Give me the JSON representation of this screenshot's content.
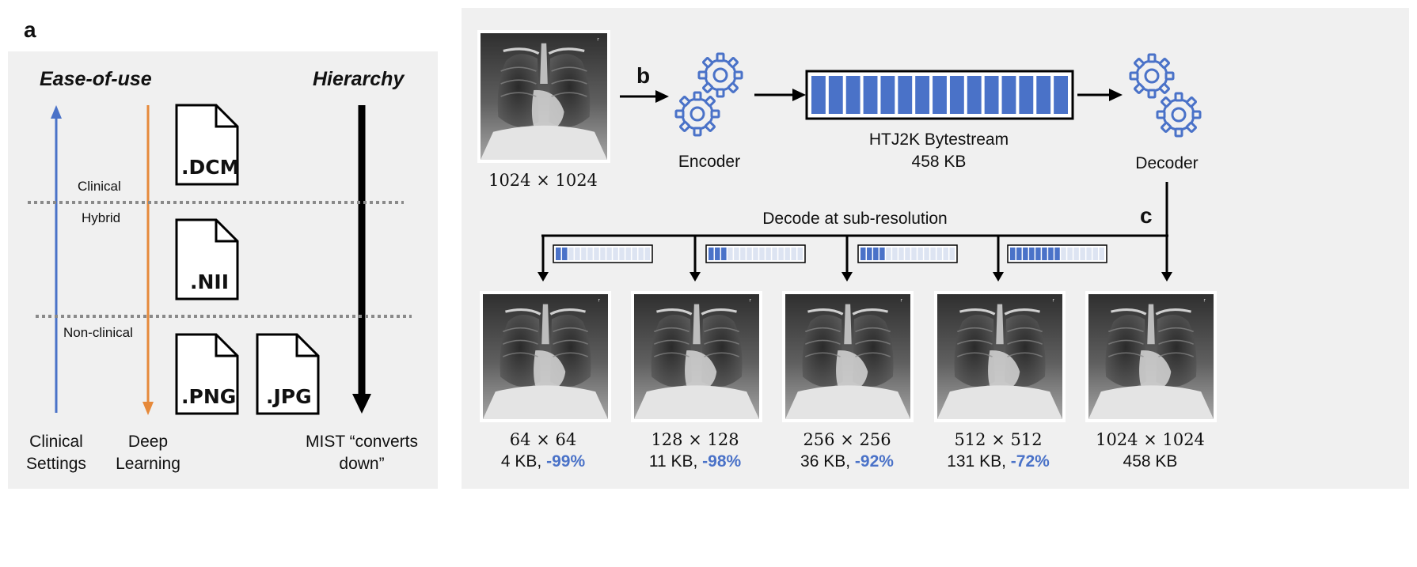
{
  "panel_a": {
    "letter": "a",
    "ease_of_use": "Ease-of-use",
    "hierarchy": "Hierarchy",
    "zones": {
      "clinical": "Clinical",
      "hybrid": "Hybrid",
      "non_clinical": "Non-clinical"
    },
    "files": {
      "dcm": ".DCM",
      "nii": ".NII",
      "png": ".PNG",
      "jpg": ".JPG"
    },
    "bottom": {
      "clinical_line1": "Clinical",
      "clinical_line2": "Settings",
      "deep_line1": "Deep",
      "deep_line2": "Learning",
      "mist_line1": "MIST “converts",
      "mist_line2": "down”"
    },
    "colors": {
      "blue": "#4a72c8",
      "orange": "#e6893a",
      "black": "#000000"
    }
  },
  "panel_b": {
    "letter": "b",
    "input_size": "1024 × 1024",
    "encoder": "Encoder",
    "bytestream_title": "HTJ2K Bytestream",
    "bytestream_size": "458 KB",
    "bytestream_blocks": 15,
    "decoder": "Decoder",
    "gear_color": "#4a72c8"
  },
  "panel_c": {
    "letter": "c",
    "decode_label": "Decode at sub-resolution",
    "outputs": [
      {
        "size": "64 × 64",
        "kb": "4 KB,",
        "pct": "-99%",
        "filled": 2
      },
      {
        "size": "128 × 128",
        "kb": "11 KB,",
        "pct": "-98%",
        "filled": 3
      },
      {
        "size": "256 × 256",
        "kb": "36 KB,",
        "pct": "-92%",
        "filled": 4
      },
      {
        "size": "512 × 512",
        "kb": "131 KB,",
        "pct": "-72%",
        "filled": 8
      },
      {
        "size": "1024 × 1024",
        "kb": "458 KB",
        "pct": "",
        "filled": 15
      }
    ]
  }
}
